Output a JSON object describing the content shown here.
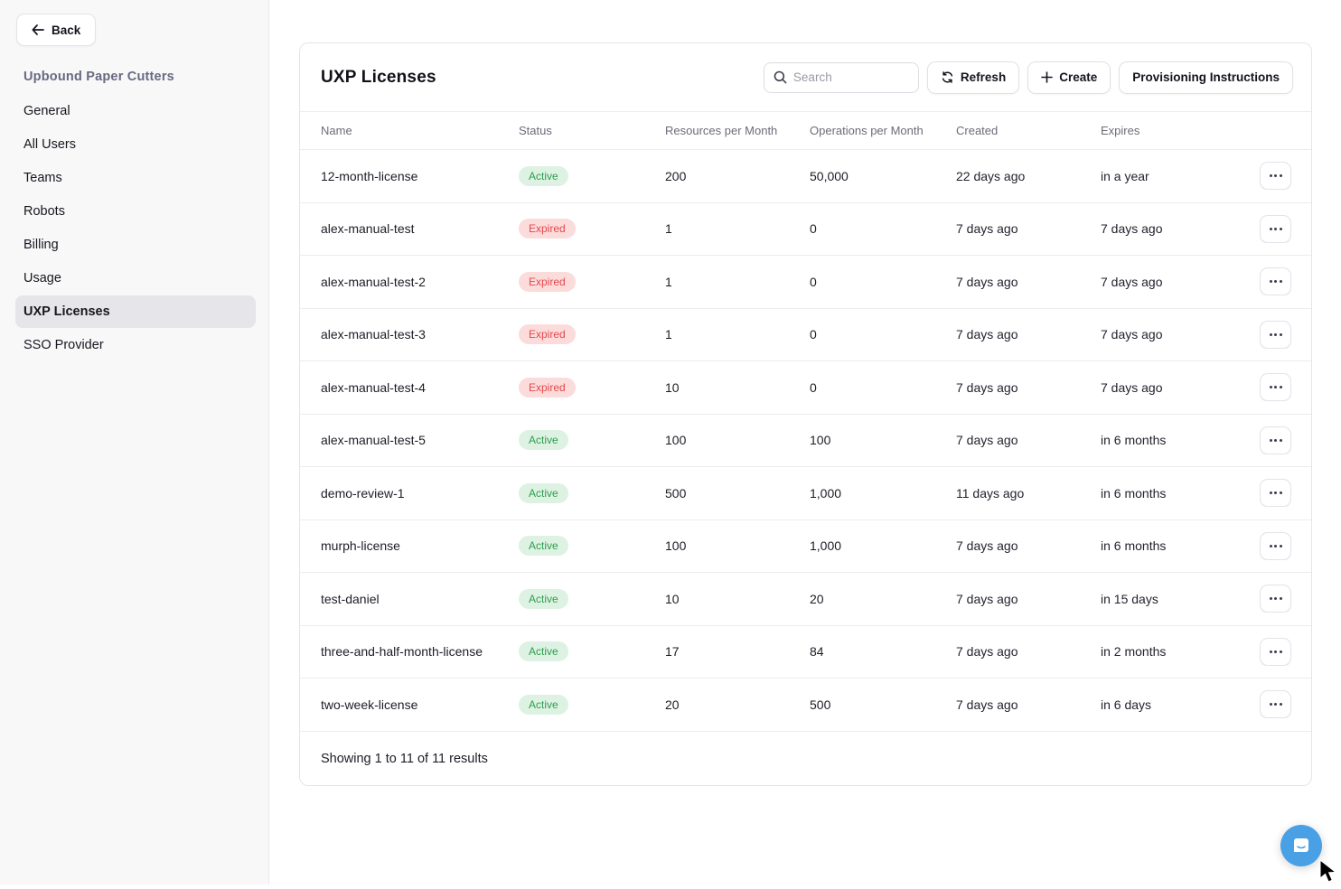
{
  "sidebar": {
    "back_label": "Back",
    "org_name": "Upbound Paper Cutters",
    "items": [
      {
        "label": "General",
        "active": false
      },
      {
        "label": "All Users",
        "active": false
      },
      {
        "label": "Teams",
        "active": false
      },
      {
        "label": "Robots",
        "active": false
      },
      {
        "label": "Billing",
        "active": false
      },
      {
        "label": "Usage",
        "active": false
      },
      {
        "label": "UXP Licenses",
        "active": true
      },
      {
        "label": "SSO Provider",
        "active": false
      }
    ]
  },
  "header": {
    "title": "UXP Licenses",
    "search_placeholder": "Search",
    "search_value": "",
    "refresh_label": "Refresh",
    "create_label": "Create",
    "provisioning_label": "Provisioning Instructions"
  },
  "table": {
    "columns": [
      "Name",
      "Status",
      "Resources per Month",
      "Operations per Month",
      "Created",
      "Expires"
    ],
    "rows": [
      {
        "name": "12-month-license",
        "status": "Active",
        "resources": "200",
        "operations": "50,000",
        "created": "22 days ago",
        "expires": "in a year"
      },
      {
        "name": "alex-manual-test",
        "status": "Expired",
        "resources": "1",
        "operations": "0",
        "created": "7 days ago",
        "expires": "7 days ago"
      },
      {
        "name": "alex-manual-test-2",
        "status": "Expired",
        "resources": "1",
        "operations": "0",
        "created": "7 days ago",
        "expires": "7 days ago"
      },
      {
        "name": "alex-manual-test-3",
        "status": "Expired",
        "resources": "1",
        "operations": "0",
        "created": "7 days ago",
        "expires": "7 days ago"
      },
      {
        "name": "alex-manual-test-4",
        "status": "Expired",
        "resources": "10",
        "operations": "0",
        "created": "7 days ago",
        "expires": "7 days ago"
      },
      {
        "name": "alex-manual-test-5",
        "status": "Active",
        "resources": "100",
        "operations": "100",
        "created": "7 days ago",
        "expires": "in 6 months"
      },
      {
        "name": "demo-review-1",
        "status": "Active",
        "resources": "500",
        "operations": "1,000",
        "created": "11 days ago",
        "expires": "in 6 months"
      },
      {
        "name": "murph-license",
        "status": "Active",
        "resources": "100",
        "operations": "1,000",
        "created": "7 days ago",
        "expires": "in 6 months"
      },
      {
        "name": "test-daniel",
        "status": "Active",
        "resources": "10",
        "operations": "20",
        "created": "7 days ago",
        "expires": "in 15 days"
      },
      {
        "name": "three-and-half-month-license",
        "status": "Active",
        "resources": "17",
        "operations": "84",
        "created": "7 days ago",
        "expires": "in 2 months"
      },
      {
        "name": "two-week-license",
        "status": "Active",
        "resources": "20",
        "operations": "500",
        "created": "7 days ago",
        "expires": "in 6 days"
      }
    ],
    "footer_text": "Showing 1 to 11 of 11 results"
  },
  "colors": {
    "active_bg": "#ddf2e2",
    "active_text": "#2e9e4f",
    "expired_bg": "#fcdbdb",
    "expired_text": "#e5484d",
    "chat_bubble_blue": "#4aa0e4",
    "sidebar_bg": "#f8f8f9",
    "selected_item_bg": "#e6e6ea"
  },
  "chat": {
    "launcher": "chat-bubble"
  }
}
